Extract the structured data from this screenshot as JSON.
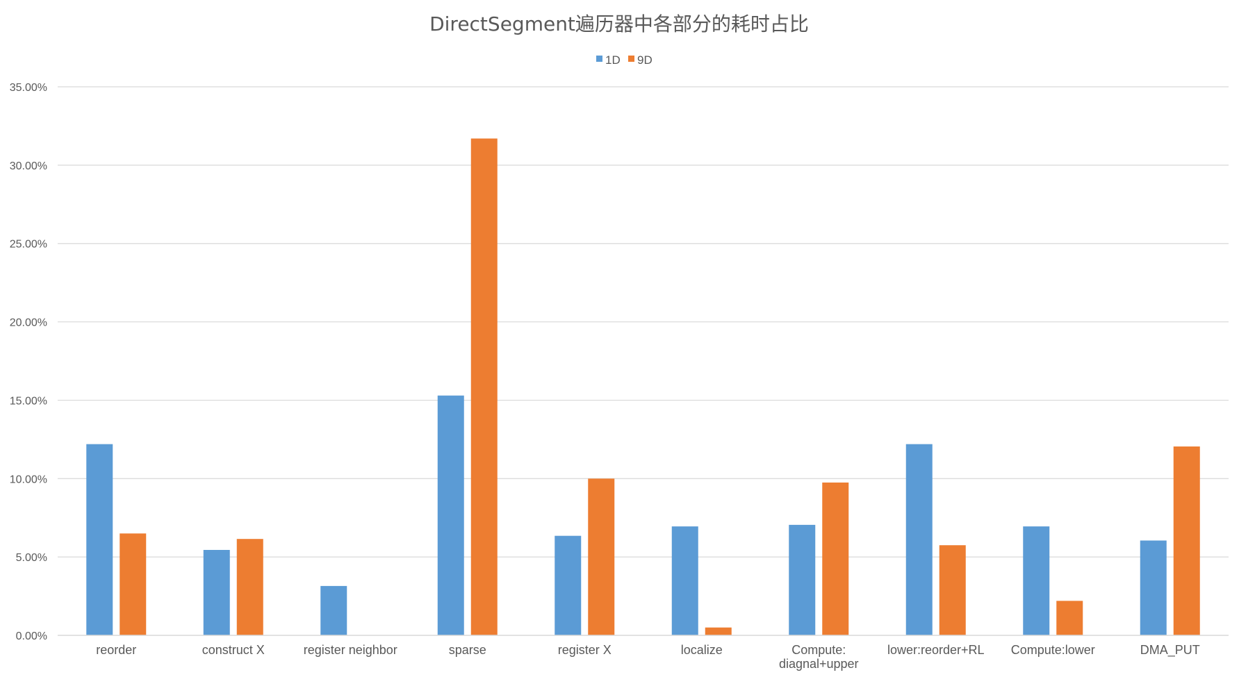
{
  "chart_data": {
    "type": "bar",
    "title": "DirectSegment遍历器中各部分的耗时占比",
    "xlabel": "",
    "ylabel": "",
    "ylim": [
      0,
      35
    ],
    "y_ticks": [
      "0.00%",
      "5.00%",
      "10.00%",
      "15.00%",
      "20.00%",
      "25.00%",
      "30.00%",
      "35.00%"
    ],
    "y_tick_values": [
      0,
      5,
      10,
      15,
      20,
      25,
      30,
      35
    ],
    "grid": true,
    "legend_position": "top-center",
    "categories": [
      "reorder",
      "construct X",
      "register neighbor",
      "sparse",
      "register X",
      "localize",
      "Compute:\ndiagnal+upper",
      "lower:reorder+RL",
      "Compute:lower",
      "DMA_PUT"
    ],
    "series": [
      {
        "name": "1D",
        "color": "#5b9bd5",
        "values": [
          12.2,
          5.45,
          3.15,
          15.3,
          6.35,
          6.95,
          7.05,
          12.2,
          6.95,
          6.05
        ]
      },
      {
        "name": "9D",
        "color": "#ed7d31",
        "values": [
          6.5,
          6.15,
          0,
          31.7,
          10.0,
          0.5,
          9.75,
          5.75,
          2.2,
          12.05
        ]
      }
    ]
  }
}
